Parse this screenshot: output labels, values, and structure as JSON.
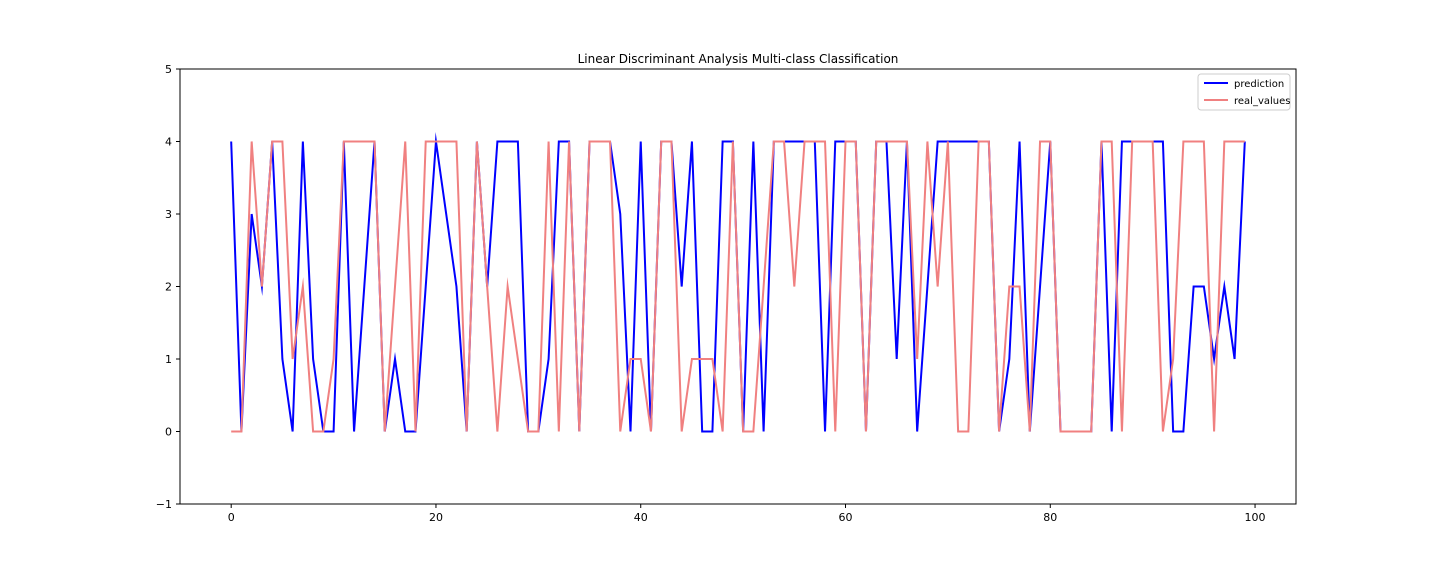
{
  "chart_data": {
    "type": "line",
    "title": "Linear Discriminant Analysis Multi-class Classification",
    "xlabel": "",
    "ylabel": "",
    "xlim": [
      -5,
      104
    ],
    "ylim": [
      -1,
      5
    ],
    "xticks": [
      0,
      20,
      40,
      60,
      80,
      100
    ],
    "yticks": [
      -1,
      0,
      1,
      2,
      3,
      4,
      5
    ],
    "grid": false,
    "legend_position": "top-right",
    "series": [
      {
        "name": "prediction",
        "color": "#0000ff",
        "values": [
          4,
          0,
          3,
          2,
          4,
          1,
          0,
          4,
          1,
          0,
          0,
          4,
          0,
          2,
          4,
          0,
          1,
          0,
          0,
          2,
          4,
          3,
          2,
          0,
          4,
          2,
          4,
          4,
          4,
          0,
          0,
          1,
          4,
          4,
          0,
          4,
          4,
          4,
          3,
          0,
          4,
          0,
          4,
          4,
          2,
          4,
          0,
          0,
          4,
          4,
          0,
          4,
          0,
          4,
          4,
          4,
          4,
          4,
          0,
          4,
          4,
          4,
          0,
          4,
          4,
          1,
          4,
          0,
          2,
          4,
          4,
          4,
          4,
          4,
          4,
          0,
          1,
          4,
          0,
          2,
          4,
          0,
          0,
          0,
          0,
          4,
          0,
          4,
          4,
          4,
          4,
          4,
          0,
          0,
          2,
          2,
          1,
          2,
          1,
          4
        ]
      },
      {
        "name": "real_values",
        "color": "#f08080",
        "values": [
          0,
          0,
          4,
          2,
          4,
          4,
          1,
          2,
          0,
          0,
          1,
          4,
          4,
          4,
          4,
          0,
          2,
          4,
          0,
          4,
          4,
          4,
          4,
          0,
          4,
          2,
          0,
          2,
          1,
          0,
          0,
          4,
          0,
          4,
          0,
          4,
          4,
          4,
          0,
          1,
          1,
          0,
          4,
          4,
          0,
          1,
          1,
          1,
          0,
          4,
          0,
          0,
          2,
          4,
          4,
          2,
          4,
          4,
          4,
          0,
          4,
          4,
          0,
          4,
          4,
          4,
          4,
          1,
          4,
          2,
          4,
          0,
          0,
          4,
          4,
          0,
          2,
          2,
          0,
          4,
          4,
          0,
          0,
          0,
          0,
          4,
          4,
          0,
          4,
          4,
          4,
          0,
          1,
          4,
          4,
          4,
          0,
          4,
          4,
          4
        ]
      }
    ]
  }
}
